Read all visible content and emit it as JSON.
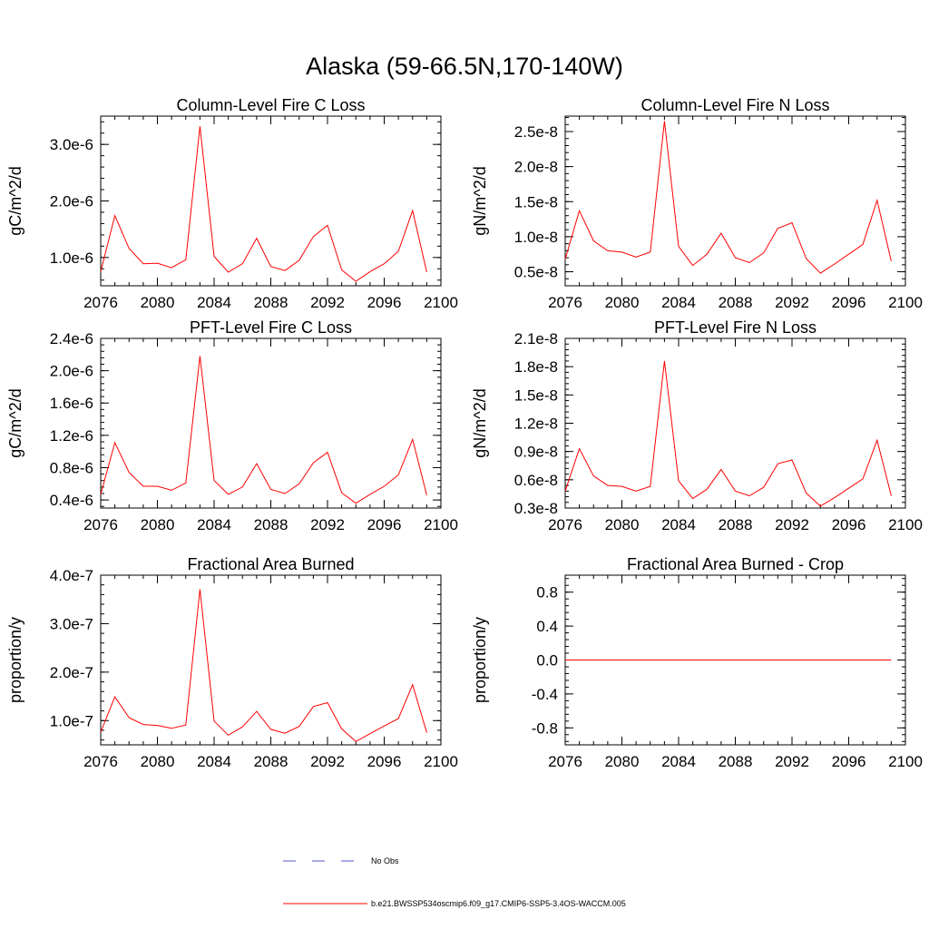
{
  "figure_title": "Alaska (59-66.5N,170-140W)",
  "legend": {
    "obs_label": "No Obs",
    "obs_color": "#5555cc",
    "model_label": "b.e21.BWSSP534oscmip6.f09_g17.CMIP6-SSP5-3.4OS-WACCM.005",
    "model_color": "#ff0000"
  },
  "chart_data": [
    {
      "type": "line",
      "title": "Column-Level Fire C Loss",
      "xlabel": "",
      "ylabel": "gC/m^2/d",
      "xlim": [
        2076,
        2100
      ],
      "ylim": [
        5e-07,
        3.5e-06
      ],
      "x_ticks": [
        2076,
        2080,
        2084,
        2088,
        2092,
        2096,
        2100
      ],
      "x_tick_labels": [
        "2076",
        "2080",
        "2084",
        "2088",
        "2092",
        "2096",
        "2100"
      ],
      "y_ticks": [
        1e-06,
        2e-06,
        3e-06
      ],
      "y_tick_labels": [
        "1.0e-6",
        "2.0e-6",
        "3.0e-6"
      ],
      "series": [
        {
          "name": "b.e21.BWSSP534oscmip6.f09_g17.CMIP6-SSP5-3.4OS-WACCM.005",
          "x": [
            2076,
            2077,
            2078,
            2079,
            2080,
            2081,
            2082,
            2083,
            2084,
            2085,
            2086,
            2087,
            2088,
            2089,
            2090,
            2091,
            2092,
            2093,
            2094,
            2095,
            2096,
            2097,
            2098,
            2099
          ],
          "values": [
            7.5e-07,
            1.74e-06,
            1.16e-06,
            8.9e-07,
            9e-07,
            8.2e-07,
            9.6e-07,
            3.32e-06,
            1.02e-06,
            7.4e-07,
            8.9e-07,
            1.34e-06,
            8.4e-07,
            7.7e-07,
            9.5e-07,
            1.37e-06,
            1.57e-06,
            7.8e-07,
            5.8e-07,
            7.5e-07,
            8.9e-07,
            1.11e-06,
            1.83e-06,
            7.4e-07
          ]
        }
      ]
    },
    {
      "type": "line",
      "title": "Column-Level Fire N Loss",
      "xlabel": "",
      "ylabel": "gN/m^2/d",
      "xlim": [
        2076,
        2100
      ],
      "ylim": [
        3e-09,
        2.72e-08
      ],
      "x_ticks": [
        2076,
        2080,
        2084,
        2088,
        2092,
        2096,
        2100
      ],
      "x_tick_labels": [
        "2076",
        "2080",
        "2084",
        "2088",
        "2092",
        "2096",
        "2100"
      ],
      "y_ticks": [
        5e-09,
        1e-08,
        1.5e-08,
        2e-08,
        2.5e-08
      ],
      "y_tick_labels": [
        "0.5e-8",
        "1.0e-8",
        "1.5e-8",
        "2.0e-8",
        "2.5e-8"
      ],
      "series": [
        {
          "name": "b.e21.BWSSP534oscmip6.f09_g17.CMIP6-SSP5-3.4OS-WACCM.005",
          "x": [
            2076,
            2077,
            2078,
            2079,
            2080,
            2081,
            2082,
            2083,
            2084,
            2085,
            2086,
            2087,
            2088,
            2089,
            2090,
            2091,
            2092,
            2093,
            2094,
            2095,
            2096,
            2097,
            2098,
            2099
          ],
          "values": [
            6.8e-09,
            1.37e-08,
            9.4e-09,
            8e-09,
            7.8e-09,
            7.1e-09,
            7.8e-09,
            2.65e-08,
            8.6e-09,
            5.9e-09,
            7.5e-09,
            1.05e-08,
            7e-09,
            6.3e-09,
            7.7e-09,
            1.12e-08,
            1.2e-08,
            6.9e-09,
            4.8e-09,
            6.1e-09,
            7.5e-09,
            8.9e-09,
            1.52e-08,
            6.5e-09
          ]
        }
      ]
    },
    {
      "type": "line",
      "title": "PFT-Level Fire C Loss",
      "xlabel": "",
      "ylabel": "gC/m^2/d",
      "xlim": [
        2076,
        2100
      ],
      "ylim": [
        3e-07,
        2.4e-06
      ],
      "x_ticks": [
        2076,
        2080,
        2084,
        2088,
        2092,
        2096,
        2100
      ],
      "x_tick_labels": [
        "2076",
        "2080",
        "2084",
        "2088",
        "2092",
        "2096",
        "2100"
      ],
      "y_ticks": [
        4e-07,
        8e-07,
        1.2e-06,
        1.6e-06,
        2e-06,
        2.4e-06
      ],
      "y_tick_labels": [
        "0.4e-6",
        "0.8e-6",
        "1.2e-6",
        "1.6e-6",
        "2.0e-6",
        "2.4e-6"
      ],
      "series": [
        {
          "name": "b.e21.BWSSP534oscmip6.f09_g17.CMIP6-SSP5-3.4OS-WACCM.005",
          "x": [
            2076,
            2077,
            2078,
            2079,
            2080,
            2081,
            2082,
            2083,
            2084,
            2085,
            2086,
            2087,
            2088,
            2089,
            2090,
            2091,
            2092,
            2093,
            2094,
            2095,
            2096,
            2097,
            2098,
            2099
          ],
          "values": [
            4.7e-07,
            1.11e-06,
            7.4e-07,
            5.7e-07,
            5.7e-07,
            5.2e-07,
            6.1e-07,
            2.18e-06,
            6.4e-07,
            4.7e-07,
            5.6e-07,
            8.5e-07,
            5.3e-07,
            4.8e-07,
            6e-07,
            8.6e-07,
            9.9e-07,
            4.9e-07,
            3.6e-07,
            4.7e-07,
            5.7e-07,
            7.1e-07,
            1.15e-06,
            4.6e-07
          ]
        }
      ]
    },
    {
      "type": "line",
      "title": "PFT-Level Fire N Loss",
      "xlabel": "",
      "ylabel": "gN/m^2/d",
      "xlim": [
        2076,
        2100
      ],
      "ylim": [
        3e-09,
        2.1e-08
      ],
      "x_ticks": [
        2076,
        2080,
        2084,
        2088,
        2092,
        2096,
        2100
      ],
      "x_tick_labels": [
        "2076",
        "2080",
        "2084",
        "2088",
        "2092",
        "2096",
        "2100"
      ],
      "y_ticks": [
        3e-09,
        6e-09,
        9e-09,
        1.2e-08,
        1.5e-08,
        1.8e-08,
        2.1e-08
      ],
      "y_tick_labels": [
        "0.3e-8",
        "0.6e-8",
        "0.9e-8",
        "1.2e-8",
        "1.5e-8",
        "1.8e-8",
        "2.1e-8"
      ],
      "series": [
        {
          "name": "b.e21.BWSSP534oscmip6.f09_g17.CMIP6-SSP5-3.4OS-WACCM.005",
          "x": [
            2076,
            2077,
            2078,
            2079,
            2080,
            2081,
            2082,
            2083,
            2084,
            2085,
            2086,
            2087,
            2088,
            2089,
            2090,
            2091,
            2092,
            2093,
            2094,
            2095,
            2096,
            2097,
            2098,
            2099
          ],
          "values": [
            4.8e-09,
            9.3e-09,
            6.4e-09,
            5.4e-09,
            5.3e-09,
            4.8e-09,
            5.3e-09,
            1.86e-08,
            5.9e-09,
            4e-09,
            5e-09,
            7.1e-09,
            4.8e-09,
            4.3e-09,
            5.2e-09,
            7.7e-09,
            8.1e-09,
            4.6e-09,
            3.2e-09,
            4.1e-09,
            5.1e-09,
            6.1e-09,
            1.02e-08,
            4.3e-09
          ]
        }
      ]
    },
    {
      "type": "line",
      "title": "Fractional Area Burned",
      "xlabel": "",
      "ylabel": "proportion/y",
      "xlim": [
        2076,
        2100
      ],
      "ylim": [
        5e-08,
        4e-07
      ],
      "x_ticks": [
        2076,
        2080,
        2084,
        2088,
        2092,
        2096,
        2100
      ],
      "x_tick_labels": [
        "2076",
        "2080",
        "2084",
        "2088",
        "2092",
        "2096",
        "2100"
      ],
      "y_ticks": [
        1e-07,
        2e-07,
        3e-07,
        4e-07
      ],
      "y_tick_labels": [
        "1.0e-7",
        "2.0e-7",
        "3.0e-7",
        "4.0e-7"
      ],
      "series": [
        {
          "name": "b.e21.BWSSP534oscmip6.f09_g17.CMIP6-SSP5-3.4OS-WACCM.005",
          "x": [
            2076,
            2077,
            2078,
            2079,
            2080,
            2081,
            2082,
            2083,
            2084,
            2085,
            2086,
            2087,
            2088,
            2089,
            2090,
            2091,
            2092,
            2093,
            2094,
            2095,
            2096,
            2097,
            2098,
            2099
          ],
          "values": [
            7.6e-08,
            1.49e-07,
            1.06e-07,
            9.2e-08,
            9e-08,
            8.4e-08,
            9.1e-08,
            3.71e-07,
            9.9e-08,
            7e-08,
            8.7e-08,
            1.19e-07,
            8.2e-08,
            7.4e-08,
            8.8e-08,
            1.29e-07,
            1.37e-07,
            8.3e-08,
            5.7e-08,
            7.3e-08,
            8.9e-08,
            1.04e-07,
            1.74e-07,
            7.5e-08
          ]
        }
      ]
    },
    {
      "type": "line",
      "title": "Fractional Area Burned - Crop",
      "xlabel": "",
      "ylabel": "proportion/y",
      "xlim": [
        2076,
        2100
      ],
      "ylim": [
        -1.0,
        1.0
      ],
      "x_ticks": [
        2076,
        2080,
        2084,
        2088,
        2092,
        2096,
        2100
      ],
      "x_tick_labels": [
        "2076",
        "2080",
        "2084",
        "2088",
        "2092",
        "2096",
        "2100"
      ],
      "y_ticks": [
        -0.8,
        -0.4,
        0.0,
        0.4,
        0.8
      ],
      "y_tick_labels": [
        "-0.8",
        "-0.4",
        "0.0",
        "0.4",
        "0.8"
      ],
      "series": [
        {
          "name": "b.e21.BWSSP534oscmip6.f09_g17.CMIP6-SSP5-3.4OS-WACCM.005",
          "x": [
            2076,
            2077,
            2078,
            2079,
            2080,
            2081,
            2082,
            2083,
            2084,
            2085,
            2086,
            2087,
            2088,
            2089,
            2090,
            2091,
            2092,
            2093,
            2094,
            2095,
            2096,
            2097,
            2098,
            2099
          ],
          "values": [
            0,
            0,
            0,
            0,
            0,
            0,
            0,
            0,
            0,
            0,
            0,
            0,
            0,
            0,
            0,
            0,
            0,
            0,
            0,
            0,
            0,
            0,
            0,
            0
          ]
        }
      ]
    }
  ]
}
